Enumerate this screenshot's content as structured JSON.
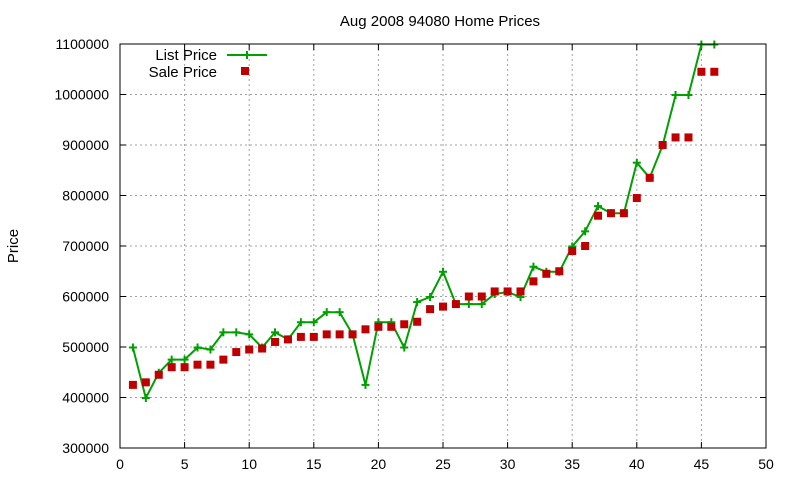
{
  "chart_data": {
    "type": "line",
    "title": "Aug 2008 94080 Home Prices",
    "xlabel": "",
    "ylabel": "Price",
    "xlim": [
      0,
      50
    ],
    "ylim": [
      300000,
      1100000
    ],
    "x_ticks": [
      0,
      5,
      10,
      15,
      20,
      25,
      30,
      35,
      40,
      45,
      50
    ],
    "y_ticks": [
      300000,
      400000,
      500000,
      600000,
      700000,
      800000,
      900000,
      1000000,
      1100000
    ],
    "grid": true,
    "legend_position": "top-left",
    "series": [
      {
        "name": "List Price",
        "style": "line-plus",
        "color": "#00a000",
        "x": [
          1,
          2,
          3,
          4,
          5,
          6,
          7,
          8,
          9,
          10,
          11,
          12,
          13,
          14,
          15,
          16,
          17,
          18,
          19,
          20,
          21,
          22,
          23,
          24,
          25,
          26,
          27,
          28,
          29,
          30,
          31,
          32,
          33,
          34,
          35,
          36,
          37,
          38,
          39,
          40,
          41,
          42,
          43,
          44,
          45,
          46
        ],
        "values": [
          499000,
          399000,
          449000,
          475000,
          475000,
          499000,
          495000,
          529000,
          529000,
          525000,
          499000,
          529000,
          515000,
          549000,
          549000,
          569000,
          569000,
          525000,
          425000,
          549000,
          549000,
          499000,
          589000,
          599000,
          649000,
          585000,
          585000,
          585000,
          605000,
          609000,
          599000,
          659000,
          649000,
          649000,
          699000,
          729000,
          779000,
          765000,
          765000,
          865000,
          835000,
          899000,
          999000,
          999000,
          1099000,
          1099000
        ]
      },
      {
        "name": "Sale Price",
        "style": "square",
        "color": "#c00000",
        "x": [
          1,
          2,
          3,
          4,
          5,
          6,
          7,
          8,
          9,
          10,
          11,
          12,
          13,
          14,
          15,
          16,
          17,
          18,
          19,
          20,
          21,
          22,
          23,
          24,
          25,
          26,
          27,
          28,
          29,
          30,
          31,
          32,
          33,
          34,
          35,
          36,
          37,
          38,
          39,
          40,
          41,
          42,
          43,
          44,
          45,
          46
        ],
        "values": [
          425000,
          430000,
          445000,
          460000,
          460000,
          465000,
          465000,
          475000,
          490000,
          495000,
          497000,
          510000,
          515000,
          520000,
          520000,
          525000,
          525000,
          525000,
          535000,
          540000,
          540000,
          545000,
          550000,
          575000,
          580000,
          585000,
          600000,
          600000,
          610000,
          610000,
          610000,
          630000,
          645000,
          650000,
          690000,
          700000,
          760000,
          765000,
          765000,
          795000,
          835000,
          900000,
          915000,
          915000,
          1045000,
          1045000
        ]
      }
    ]
  }
}
